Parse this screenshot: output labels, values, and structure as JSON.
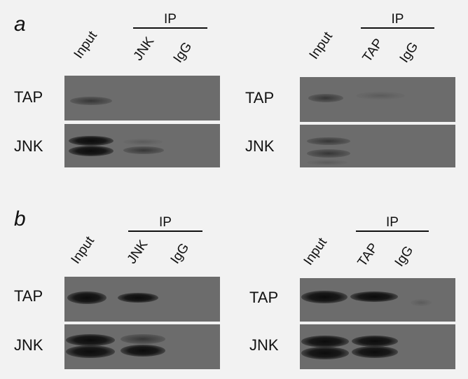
{
  "panel_a": {
    "letter": "a",
    "left": {
      "ip_label": "IP",
      "lanes": [
        "Input",
        "JNK",
        "IgG"
      ],
      "rows": [
        "TAP",
        "JNK"
      ]
    },
    "right": {
      "ip_label": "IP",
      "lanes": [
        "Input",
        "TAP",
        "IgG"
      ],
      "rows": [
        "TAP",
        "JNK"
      ]
    }
  },
  "panel_b": {
    "letter": "b",
    "left": {
      "ip_label": "IP",
      "lanes": [
        "Input",
        "JNK",
        "IgG"
      ],
      "rows": [
        "TAP",
        "JNK"
      ]
    },
    "right": {
      "ip_label": "IP",
      "lanes": [
        "Input",
        "TAP",
        "IgG"
      ],
      "rows": [
        "TAP",
        "JNK"
      ]
    }
  }
}
